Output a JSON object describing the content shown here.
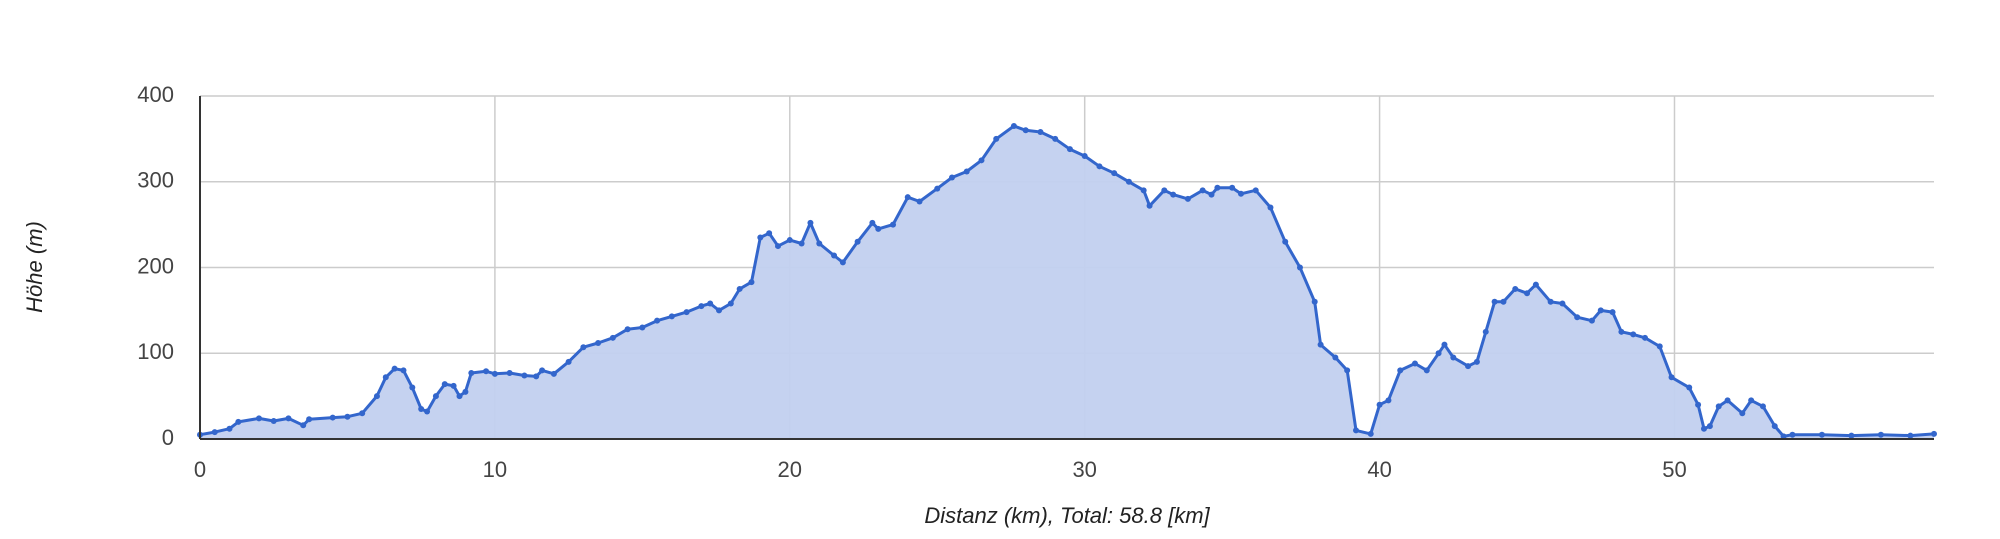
{
  "chart_data": {
    "type": "area",
    "x_label": "Distanz (km), Total: 58.8 [km]",
    "y_label": "Höhe (m)",
    "x": [
      0,
      0.5,
      1,
      1.3,
      2,
      2.5,
      3,
      3.5,
      3.7,
      4.5,
      5,
      5.5,
      6,
      6.3,
      6.6,
      6.9,
      7.2,
      7.5,
      7.7,
      8,
      8.3,
      8.6,
      8.8,
      9,
      9.2,
      9.7,
      10,
      10.5,
      11,
      11.4,
      11.6,
      12,
      12.5,
      13,
      13.5,
      14,
      14.5,
      15,
      15.5,
      16,
      16.5,
      17,
      17.3,
      17.6,
      18,
      18.3,
      18.7,
      19,
      19.3,
      19.6,
      20,
      20.4,
      20.7,
      21,
      21.5,
      21.8,
      22.3,
      22.8,
      23,
      23.5,
      24,
      24.4,
      25,
      25.5,
      26,
      26.5,
      27,
      27.6,
      28,
      28.5,
      29,
      29.5,
      30,
      30.5,
      31,
      31.5,
      32,
      32.2,
      32.7,
      33,
      33.5,
      34,
      34.3,
      34.5,
      35,
      35.3,
      35.8,
      36.3,
      36.8,
      37.3,
      37.8,
      38,
      38.5,
      38.9,
      39.2,
      39.7,
      40,
      40.3,
      40.7,
      41.2,
      41.6,
      42,
      42.2,
      42.5,
      43,
      43.3,
      43.6,
      43.9,
      44.2,
      44.6,
      45,
      45.3,
      45.8,
      46.2,
      46.7,
      47.2,
      47.5,
      47.9,
      48.2,
      48.6,
      49,
      49.5,
      49.9,
      50.5,
      50.8,
      51,
      51.2,
      51.5,
      51.8,
      52.3,
      52.6,
      53,
      53.4,
      53.7,
      54,
      55,
      56,
      57,
      58,
      58.8
    ],
    "y": [
      5,
      8,
      12,
      20,
      24,
      21,
      24,
      16,
      23,
      25,
      26,
      30,
      50,
      72,
      82,
      80,
      60,
      35,
      32,
      50,
      64,
      62,
      50,
      55,
      77,
      79,
      76,
      77,
      74,
      73,
      80,
      76,
      90,
      107,
      112,
      118,
      128,
      130,
      138,
      143,
      148,
      155,
      158,
      150,
      158,
      175,
      183,
      235,
      240,
      225,
      232,
      228,
      252,
      228,
      214,
      206,
      230,
      252,
      245,
      250,
      282,
      277,
      292,
      305,
      312,
      325,
      350,
      365,
      360,
      358,
      350,
      338,
      330,
      318,
      310,
      300,
      290,
      272,
      290,
      285,
      280,
      290,
      285,
      293,
      293,
      286,
      290,
      270,
      230,
      200,
      160,
      110,
      95,
      80,
      10,
      6,
      40,
      45,
      80,
      88,
      80,
      100,
      110,
      95,
      85,
      90,
      125,
      160,
      160,
      175,
      170,
      180,
      160,
      158,
      142,
      138,
      150,
      148,
      125,
      122,
      118,
      108,
      72,
      60,
      40,
      12,
      15,
      38,
      45,
      30,
      45,
      38,
      15,
      3,
      5,
      5,
      4,
      5,
      4,
      6
    ],
    "color": "#3366cc",
    "fill": "#c2d0ef",
    "xlim": [
      0,
      58.8
    ],
    "ylim": [
      0,
      400
    ],
    "xticks": [
      0,
      10,
      20,
      30,
      40,
      50
    ],
    "yticks": [
      0,
      100,
      200,
      300,
      400
    ],
    "grid": true
  }
}
